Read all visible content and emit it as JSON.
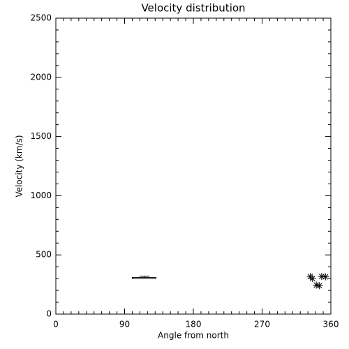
{
  "chart_data": {
    "type": "scatter",
    "title": "Velocity distribution",
    "x_label": "Angle from north",
    "y_label": "Velocity (km/s)",
    "xlim": [
      0,
      360
    ],
    "xticks": [
      0,
      90,
      180,
      270,
      360
    ],
    "ylim": [
      0,
      2500
    ],
    "yticks": [
      0,
      500,
      1000,
      1500,
      2000,
      2500
    ],
    "color": "#000000",
    "x": [
      333,
      336,
      341,
      345,
      348,
      353
    ],
    "values": [
      318,
      300,
      245,
      240,
      318,
      315
    ],
    "box": {
      "x_range": [
        100,
        131
      ],
      "low": 300,
      "high": 310,
      "whisker_x": 116,
      "whisker_high": 320
    }
  }
}
